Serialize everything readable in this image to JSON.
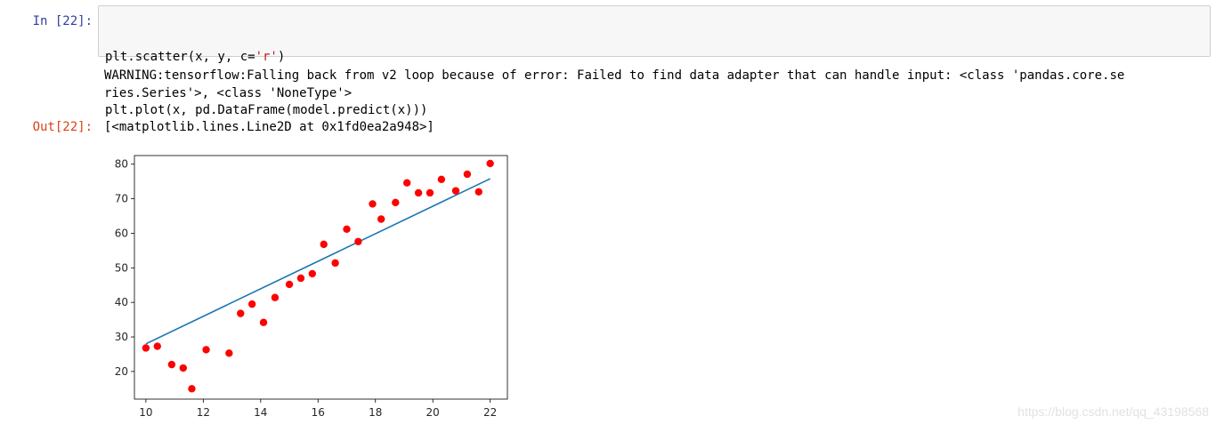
{
  "cell": {
    "in_prompt": "In  [22]:",
    "out_prompt": "Out[22]:",
    "code_line1": {
      "a": "plt.scatter(x, y, c=",
      "s": "'r'",
      "b": ")"
    },
    "code_line2": "plt.plot(x, pd.DataFrame(model.predict(x)))",
    "stderr_line1": "WARNING:tensorflow:Falling back from v2 loop because of error: Failed to find data adapter that can handle input: <class 'pandas.core.se",
    "stderr_line2": "ries.Series'>, <class 'NoneType'>",
    "output_text": "[<matplotlib.lines.Line2D at 0x1fd0ea2a948>]"
  },
  "chart_data": {
    "type": "scatter",
    "xlim": [
      9.6,
      22.6
    ],
    "ylim": [
      12,
      82.5
    ],
    "xticks": [
      10,
      12,
      14,
      16,
      18,
      20,
      22
    ],
    "yticks": [
      20,
      30,
      40,
      50,
      60,
      70,
      80
    ],
    "grid": false,
    "scatter": {
      "color": "#ff0000",
      "x": [
        10.0,
        10.4,
        10.9,
        11.3,
        11.6,
        12.1,
        12.9,
        13.3,
        13.7,
        14.1,
        14.5,
        15.0,
        15.4,
        15.8,
        16.2,
        16.6,
        17.0,
        17.4,
        17.9,
        18.2,
        18.7,
        19.1,
        19.5,
        19.9,
        20.3,
        20.8,
        21.2,
        21.6,
        22.0
      ],
      "y": [
        26.8,
        27.3,
        22.0,
        21.0,
        15.0,
        26.3,
        25.3,
        36.8,
        39.5,
        34.2,
        41.4,
        45.2,
        47.0,
        48.3,
        56.8,
        51.4,
        61.2,
        57.6,
        68.5,
        64.1,
        68.9,
        74.6,
        71.7,
        71.7,
        75.6,
        72.3,
        77.1,
        72.0,
        80.2
      ]
    },
    "line": {
      "color": "#1f77b4",
      "x": [
        10,
        22
      ],
      "y": [
        28.0,
        75.8
      ]
    }
  },
  "watermark": "https://blog.csdn.net/qq_43198568"
}
